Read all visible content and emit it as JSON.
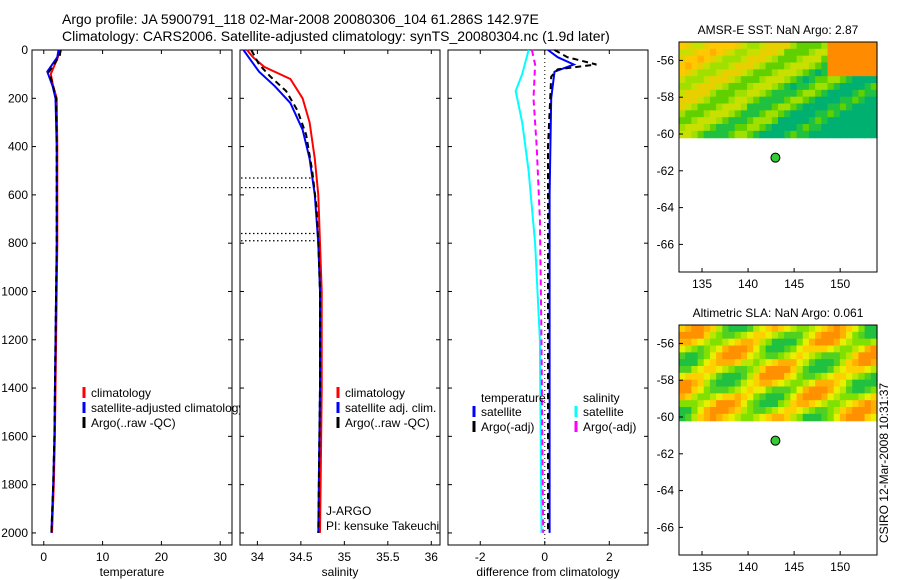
{
  "header": {
    "line1": "Argo profile: JA 5900791_118 02-Mar-2008 20080306_104 61.286S 142.97E",
    "line2": "Climatology: CARS2006. Satellite-adjusted climatology: synTS_20080304.nc (1.9d later)"
  },
  "side_text": "CSIRO 12-Mar-2008 10:31:37",
  "chart_data": [
    {
      "type": "line",
      "id": "temperature",
      "xlabel": "temperature",
      "ylabel": "",
      "xlim": [
        -2,
        32
      ],
      "ylim": [
        2050,
        0
      ],
      "y_reversed": true,
      "xticks": [
        0,
        10,
        20,
        30
      ],
      "yticks": [
        0,
        200,
        400,
        600,
        800,
        1000,
        1200,
        1400,
        1600,
        1800,
        2000
      ],
      "legend": [
        "climatology",
        "satellite-adjusted climatology",
        "Argo(..raw -QC)"
      ],
      "series": [
        {
          "name": "climatology",
          "color": "#ff0000",
          "dash": "none",
          "points": [
            [
              2.6,
              0
            ],
            [
              2.4,
              30
            ],
            [
              1.2,
              100
            ],
            [
              1.6,
              150
            ],
            [
              2.2,
              200
            ],
            [
              2.3,
              400
            ],
            [
              2.3,
              800
            ],
            [
              2.1,
              1200
            ],
            [
              1.9,
              1600
            ],
            [
              1.7,
              1800
            ],
            [
              1.4,
              2000
            ]
          ]
        },
        {
          "name": "satellite-adjusted climatology",
          "color": "#0000ff",
          "dash": "none",
          "points": [
            [
              2.5,
              0
            ],
            [
              2.3,
              30
            ],
            [
              0.6,
              90
            ],
            [
              1.5,
              150
            ],
            [
              2.0,
              200
            ],
            [
              2.2,
              400
            ],
            [
              2.2,
              800
            ],
            [
              2.0,
              1200
            ],
            [
              1.8,
              1600
            ],
            [
              1.6,
              1800
            ],
            [
              1.3,
              2000
            ]
          ]
        },
        {
          "name": "Argo(..raw -QC)",
          "color": "#000000",
          "dash": "6,4",
          "points": [
            [
              2.9,
              0
            ],
            [
              2.7,
              25
            ],
            [
              0.9,
              90
            ],
            [
              1.6,
              150
            ],
            [
              2.1,
              200
            ],
            [
              2.2,
              400
            ],
            [
              2.2,
              800
            ],
            [
              2.0,
              1200
            ],
            [
              1.8,
              1600
            ],
            [
              1.6,
              1800
            ],
            [
              1.3,
              2000
            ]
          ]
        }
      ],
      "qc_flags": []
    },
    {
      "type": "line",
      "id": "salinity",
      "xlabel": "salinity",
      "xlim": [
        33.8,
        36.1
      ],
      "ylim": [
        2050,
        0
      ],
      "y_reversed": true,
      "xticks": [
        34,
        34.5,
        35,
        35.5,
        36
      ],
      "xticklabels": [
        "34",
        "34.5",
        "35",
        "35.5",
        "36"
      ],
      "yticks": [
        0,
        200,
        400,
        600,
        800,
        1000,
        1200,
        1400,
        1600,
        1800,
        2000
      ],
      "legend": [
        "climatology",
        "satellite adj. clim.",
        "Argo(..raw -QC)"
      ],
      "annotations": [
        "J-ARGO",
        "PI: kensuke Takeuchi"
      ],
      "series": [
        {
          "name": "climatology",
          "color": "#ff0000",
          "dash": "none",
          "points": [
            [
              33.88,
              0
            ],
            [
              33.95,
              30
            ],
            [
              34.08,
              70
            ],
            [
              34.38,
              120
            ],
            [
              34.52,
              200
            ],
            [
              34.6,
              300
            ],
            [
              34.66,
              450
            ],
            [
              34.7,
              600
            ],
            [
              34.72,
              800
            ],
            [
              34.74,
              1000
            ],
            [
              34.74,
              1200
            ],
            [
              34.74,
              1400
            ],
            [
              34.73,
              1700
            ],
            [
              34.72,
              2000
            ]
          ]
        },
        {
          "name": "satellite adj. clim.",
          "color": "#0000ff",
          "dash": "none",
          "points": [
            [
              33.84,
              0
            ],
            [
              33.92,
              40
            ],
            [
              34.02,
              90
            ],
            [
              34.2,
              150
            ],
            [
              34.38,
              220
            ],
            [
              34.52,
              330
            ],
            [
              34.6,
              450
            ],
            [
              34.66,
              600
            ],
            [
              34.7,
              800
            ],
            [
              34.72,
              1000
            ],
            [
              34.72,
              1200
            ],
            [
              34.72,
              1400
            ],
            [
              34.71,
              1700
            ],
            [
              34.7,
              2000
            ]
          ]
        },
        {
          "name": "Argo(..raw -QC)",
          "color": "#000000",
          "dash": "6,4",
          "points": [
            [
              33.93,
              0
            ],
            [
              34.02,
              60
            ],
            [
              34.15,
              110
            ],
            [
              34.33,
              170
            ],
            [
              34.46,
              250
            ],
            [
              34.56,
              350
            ],
            [
              34.63,
              500
            ],
            [
              34.68,
              650
            ],
            [
              34.7,
              800
            ],
            [
              34.72,
              1000
            ],
            [
              34.72,
              1200
            ],
            [
              34.72,
              1400
            ],
            [
              34.71,
              1700
            ],
            [
              34.7,
              2000
            ]
          ]
        }
      ],
      "qc_flags": [
        [
          530,
          34.62
        ],
        [
          570,
          34.65
        ],
        [
          760,
          34.69
        ],
        [
          790,
          34.69
        ]
      ]
    },
    {
      "type": "line",
      "id": "difference",
      "xlabel": "difference from climatology",
      "xlim": [
        -3,
        3.2
      ],
      "ylim": [
        2050,
        0
      ],
      "y_reversed": true,
      "xticks": [
        -2,
        0,
        2
      ],
      "yticks": [
        0,
        200,
        400,
        600,
        800,
        1000,
        1200,
        1400,
        1600,
        1800,
        2000
      ],
      "legend_left_title": "temperature",
      "legend_right_title": "salinity",
      "legend": [
        "satellite",
        "Argo(-adj)",
        "satellite",
        "Argo(-adj)"
      ],
      "series": [
        {
          "name": "satellite",
          "group": "temperature",
          "color": "#0000ff",
          "dash": "none",
          "points": [
            [
              0.1,
              0
            ],
            [
              0.4,
              30
            ],
            [
              0.9,
              60
            ],
            [
              0.3,
              90
            ],
            [
              0.2,
              200
            ],
            [
              0.15,
              600
            ],
            [
              0.15,
              1200
            ],
            [
              0.15,
              2000
            ]
          ]
        },
        {
          "name": "Argo(-adj)",
          "group": "temperature",
          "color": "#000000",
          "dash": "6,4",
          "points": [
            [
              0.3,
              0
            ],
            [
              0.7,
              30
            ],
            [
              1.6,
              60
            ],
            [
              0.4,
              80
            ],
            [
              0.2,
              110
            ],
            [
              0.1,
              400
            ],
            [
              0.1,
              1200
            ],
            [
              0.1,
              2000
            ]
          ]
        },
        {
          "name": "satellite",
          "group": "salinity",
          "color": "#00ffff",
          "dash": "none",
          "points": [
            [
              -0.5,
              0
            ],
            [
              -0.7,
              100
            ],
            [
              -0.9,
              170
            ],
            [
              -0.7,
              300
            ],
            [
              -0.5,
              500
            ],
            [
              -0.3,
              800
            ],
            [
              -0.15,
              1200
            ],
            [
              -0.1,
              2000
            ]
          ]
        },
        {
          "name": "Argo(-adj)",
          "group": "salinity",
          "color": "#ff00ff",
          "dash": "6,4",
          "points": [
            [
              -0.4,
              0
            ],
            [
              -0.3,
              60
            ],
            [
              -0.35,
              200
            ],
            [
              -0.25,
              400
            ],
            [
              -0.15,
              700
            ],
            [
              -0.1,
              1200
            ],
            [
              -0.05,
              2000
            ]
          ]
        }
      ],
      "qc_flags": []
    },
    {
      "type": "heatmap",
      "id": "amsr_sst",
      "title": "AMSR-E SST: NaN Argo: 2.87",
      "xlim": [
        132.5,
        154
      ],
      "ylim": [
        -67.5,
        -55
      ],
      "xticks": [
        135,
        140,
        145,
        150
      ],
      "yticks": [
        -56,
        -58,
        -60,
        -62,
        -64,
        -66
      ],
      "float_position": [
        142.97,
        -61.286
      ],
      "field_ylim": [
        -60.2,
        -55
      ]
    },
    {
      "type": "heatmap",
      "id": "altimetric_sla",
      "title": "Altimetric SLA: NaN Argo: 0.061",
      "xlim": [
        132.5,
        154
      ],
      "ylim": [
        -67.5,
        -55
      ],
      "xticks": [
        135,
        140,
        145,
        150
      ],
      "yticks": [
        -56,
        -58,
        -60,
        -62,
        -64,
        -66
      ],
      "float_position": [
        142.97,
        -61.286
      ],
      "field_ylim": [
        -60.2,
        -55
      ]
    }
  ]
}
